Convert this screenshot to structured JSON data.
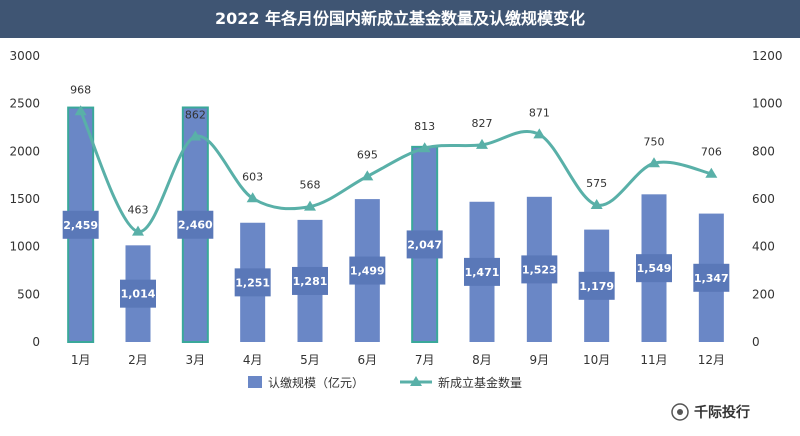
{
  "chart_data": {
    "type": "bar",
    "title": "2022 年各月份国内新成立基金数量及认缴规模变化",
    "categories": [
      "1月",
      "2月",
      "3月",
      "4月",
      "5月",
      "6月",
      "7月",
      "8月",
      "9月",
      "10月",
      "11月",
      "12月"
    ],
    "series": [
      {
        "name": "认缴规模（亿元）",
        "type": "bar",
        "axis": "left",
        "values": [
          2459,
          1014,
          2460,
          1251,
          1281,
          1499,
          2047,
          1471,
          1523,
          1179,
          1549,
          1347
        ],
        "labels": [
          "2,459",
          "1,014",
          "2,460",
          "1,251",
          "1,281",
          "1,499",
          "2,047",
          "1,471",
          "1,523",
          "1,179",
          "1,549",
          "1,347"
        ]
      },
      {
        "name": "新成立基金数量",
        "type": "line",
        "axis": "right",
        "values": [
          968,
          463,
          862,
          603,
          568,
          695,
          813,
          827,
          871,
          575,
          750,
          706
        ],
        "labels": [
          "968",
          "463",
          "862",
          "603",
          "568",
          "695",
          "813",
          "827",
          "871",
          "575",
          "750",
          "706"
        ]
      }
    ],
    "ylim_left": [
      0,
      3000
    ],
    "yticks_left": [
      "0",
      "500",
      "1000",
      "1500",
      "2000",
      "2500",
      "3000"
    ],
    "ylim_right": [
      0,
      1200
    ],
    "yticks_right": [
      "0",
      "200",
      "400",
      "600",
      "800",
      "1000",
      "1200"
    ],
    "legend_position": "bottom",
    "colors": {
      "bar_fill": "#6a87c6",
      "bar_highlight_border": "#3aa89a",
      "line": "#59b0a8",
      "title_bg": "#3f5573",
      "label_box": "#5a78b8"
    },
    "highlighted_bars": [
      "1月",
      "3月",
      "7月"
    ],
    "watermark": "千际投行"
  }
}
